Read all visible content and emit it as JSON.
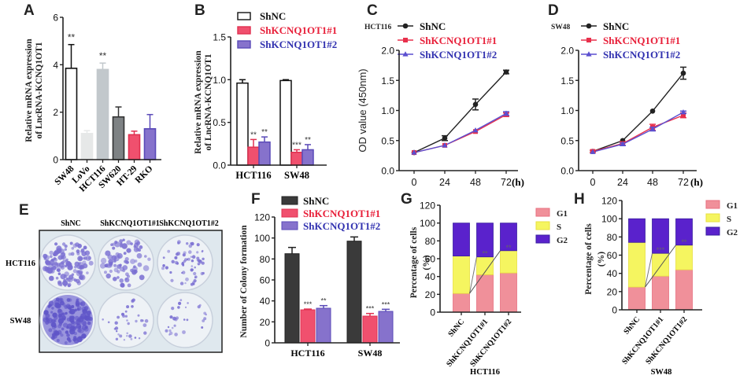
{
  "colors": {
    "shnc_white": "#ffffff",
    "shnc_dark": "#3a3a3a",
    "red": "#f0506e",
    "red_text": "#e8203a",
    "purple": "#8672cc",
    "purple_text": "#3232b0",
    "black_line": "#222222",
    "g1": "#f0909a",
    "s": "#f5f560",
    "g2": "#5a22cc",
    "lovo": "#e6e8e8",
    "hct116": "#c2c8cc",
    "sw620": "#7e8284"
  },
  "chart_data": [
    {
      "panel": "A",
      "type": "bar",
      "title": "",
      "xlabel": "",
      "ylabel": "Relative mRNA expression of LncRNA-KCNQ1OT1",
      "ylabel_lines": [
        "Relative mRNA expression",
        "of LncRNA-KCNQ1OT1"
      ],
      "ylim": [
        0,
        6
      ],
      "yticks": [
        "0",
        "2",
        "4",
        "6"
      ],
      "categories": [
        "SW48",
        "LoVo",
        "HCT116",
        "SW620",
        "HT-29",
        "RKO"
      ],
      "values": [
        3.85,
        1.1,
        3.8,
        1.8,
        1.05,
        1.3
      ],
      "errors": [
        1.0,
        0.12,
        0.27,
        0.42,
        0.15,
        0.6
      ],
      "significance": [
        "**",
        "",
        "**",
        "",
        "",
        ""
      ]
    },
    {
      "panel": "B",
      "type": "bar",
      "ylabel_lines": [
        "Relative mRNA expression",
        "of LncRNA-KCNQ1OT1"
      ],
      "ylim": [
        0,
        1.5
      ],
      "yticks": [
        "0.0",
        "0.5",
        "1.0",
        "1.5"
      ],
      "categories": [
        "HCT116",
        "SW48"
      ],
      "series": [
        {
          "name": "ShNC",
          "values": [
            0.96,
            0.99
          ],
          "errors": [
            0.04,
            0.01
          ],
          "significance": [
            "",
            ""
          ]
        },
        {
          "name": "ShKCNQ1OT1#1",
          "values": [
            0.21,
            0.15
          ],
          "errors": [
            0.09,
            0.03
          ],
          "significance": [
            "**",
            "***"
          ]
        },
        {
          "name": "ShKCNQ1OT1#2",
          "values": [
            0.27,
            0.18
          ],
          "errors": [
            0.06,
            0.06
          ],
          "significance": [
            "**",
            "**"
          ]
        }
      ],
      "legend": "top"
    },
    {
      "panel": "C",
      "type": "line",
      "cell_line": "HCT116",
      "ylabel": "OD value (450nm)",
      "xlabel": "(h)",
      "x": [
        0,
        24,
        48,
        72
      ],
      "xticks": [
        "0",
        "24",
        "48",
        "72"
      ],
      "ylim": [
        0,
        2.0
      ],
      "yticks": [
        "0.0",
        "0.5",
        "1.0",
        "1.5",
        "2.0"
      ],
      "series": [
        {
          "name": "ShNC",
          "values": [
            0.3,
            0.54,
            1.1,
            1.64
          ],
          "errors": [
            0.01,
            0.04,
            0.09,
            0.03
          ]
        },
        {
          "name": "ShKCNQ1OT1#1",
          "values": [
            0.3,
            0.42,
            0.65,
            0.93
          ],
          "errors": [
            0.01,
            0.01,
            0.01,
            0.03
          ]
        },
        {
          "name": "ShKCNQ1OT1#2",
          "values": [
            0.3,
            0.42,
            0.67,
            0.95
          ],
          "errors": [
            0.01,
            0.01,
            0.01,
            0.03
          ]
        }
      ],
      "legend": "top"
    },
    {
      "panel": "D",
      "type": "line",
      "cell_line": "SW48",
      "xlabel": "(h)",
      "x": [
        0,
        24,
        48,
        72
      ],
      "xticks": [
        "0",
        "24",
        "48",
        "72"
      ],
      "ylim": [
        0,
        2.0
      ],
      "yticks": [
        "0.0",
        "0.5",
        "1.0",
        "1.5",
        "2.0"
      ],
      "series": [
        {
          "name": "ShNC",
          "values": [
            0.32,
            0.5,
            0.99,
            1.62
          ],
          "errors": [
            0.01,
            0.01,
            0.01,
            0.1
          ]
        },
        {
          "name": "ShKCNQ1OT1#1",
          "values": [
            0.32,
            0.45,
            0.72,
            0.92
          ],
          "errors": [
            0.02,
            0.03,
            0.05,
            0.04
          ]
        },
        {
          "name": "ShKCNQ1OT1#2",
          "values": [
            0.31,
            0.44,
            0.69,
            0.97
          ],
          "errors": [
            0.01,
            0.02,
            0.03,
            0.02
          ]
        }
      ],
      "legend": "top"
    },
    {
      "panel": "F",
      "type": "bar",
      "ylabel": "Number of Colony formation",
      "ylim": [
        0,
        120
      ],
      "yticks": [
        "0",
        "20",
        "40",
        "60",
        "80",
        "100",
        "120"
      ],
      "categories": [
        "HCT116",
        "SW48"
      ],
      "series": [
        {
          "name": "ShNC",
          "values": [
            85,
            97
          ],
          "errors": [
            6,
            4
          ],
          "significance": [
            "",
            ""
          ]
        },
        {
          "name": "ShKCNQ1OT1#1",
          "values": [
            31.5,
            25.5
          ],
          "errors": [
            0.7,
            2.5
          ],
          "significance": [
            "***",
            "***"
          ]
        },
        {
          "name": "ShKCNQ1OT1#2",
          "values": [
            33,
            30
          ],
          "errors": [
            2.5,
            2
          ],
          "significance": [
            "**",
            "***"
          ]
        }
      ],
      "legend": "top"
    },
    {
      "panel": "G",
      "type": "bar",
      "stacked": true,
      "ylabel_lines": [
        "Percentage of cells",
        "(%)"
      ],
      "xlabel": "HCT116",
      "ylim": [
        0,
        120
      ],
      "yticks": [
        "0",
        "20",
        "40",
        "60",
        "80",
        "100",
        "120"
      ],
      "categories": [
        "ShNC",
        "ShKCNQ1OT1#1",
        "ShKCNQ1OT1#2"
      ],
      "series": [
        {
          "name": "G1",
          "values": [
            21,
            42,
            44
          ]
        },
        {
          "name": "S",
          "values": [
            42,
            20,
            25
          ]
        },
        {
          "name": "G2",
          "values": [
            37,
            38,
            31
          ]
        }
      ],
      "significance": [
        "",
        "**",
        "**"
      ],
      "legend": "right"
    },
    {
      "panel": "H",
      "type": "bar",
      "stacked": true,
      "ylabel_lines": [
        "Percentage of cells",
        "(%)"
      ],
      "xlabel": "SW48",
      "ylim": [
        0,
        120
      ],
      "yticks": [
        "0",
        "20",
        "40",
        "60",
        "80",
        "100",
        "120"
      ],
      "categories": [
        "ShNC",
        "ShKCNQ1OT1#1",
        "ShKCNQ1OT1#2"
      ],
      "series": [
        {
          "name": "G1",
          "values": [
            25,
            37,
            44
          ]
        },
        {
          "name": "S",
          "values": [
            49,
            25,
            27
          ]
        },
        {
          "name": "G2",
          "values": [
            26,
            38,
            29
          ]
        }
      ],
      "significance": [
        "",
        "***",
        "**"
      ],
      "legend": "right"
    }
  ],
  "panel_e": {
    "label": "E",
    "columns": [
      "ShNC",
      "ShKCNQ1OT1#1",
      "ShKCNQ1OT1#2"
    ],
    "rows": [
      "HCT116",
      "SW48"
    ],
    "colony_density": [
      [
        0.9,
        0.55,
        0.45
      ],
      [
        1.0,
        0.25,
        0.2
      ]
    ]
  },
  "panel_labels": [
    "A",
    "B",
    "C",
    "D",
    "E",
    "F",
    "G",
    "H"
  ]
}
